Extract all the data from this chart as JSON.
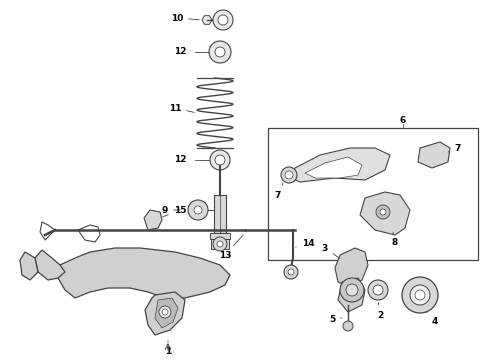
{
  "bg_color": "#ffffff",
  "line_color": "#444444",
  "fig_width": 4.9,
  "fig_height": 3.6,
  "dpi": 100,
  "xlim": [
    0,
    490
  ],
  "ylim": [
    0,
    360
  ]
}
